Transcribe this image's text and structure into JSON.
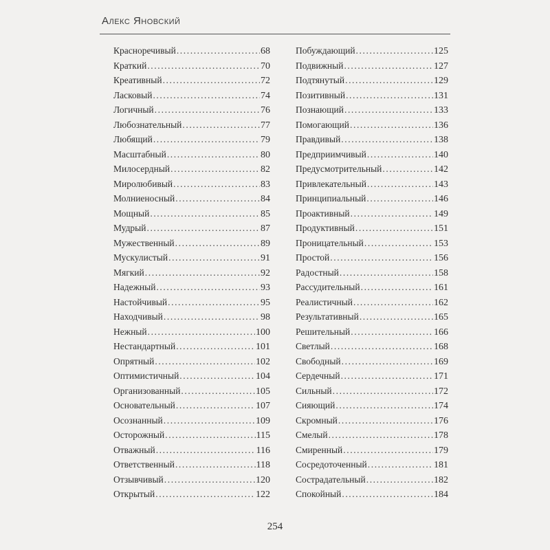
{
  "header": {
    "author": "Алекс Яновский"
  },
  "index_left": [
    {
      "term": "Красноречивый",
      "page": "68"
    },
    {
      "term": "Краткий",
      "page": "70"
    },
    {
      "term": "Креативный",
      "page": "72"
    },
    {
      "term": "Ласковый",
      "page": "74"
    },
    {
      "term": "Логичный",
      "page": "76"
    },
    {
      "term": "Любознательный",
      "page": "77"
    },
    {
      "term": "Любящий",
      "page": "79"
    },
    {
      "term": "Масштабный",
      "page": "80"
    },
    {
      "term": "Милосердный",
      "page": "82"
    },
    {
      "term": "Миролюбивый",
      "page": "83"
    },
    {
      "term": "Молниеносный",
      "page": "84"
    },
    {
      "term": "Мощный",
      "page": "85"
    },
    {
      "term": "Мудрый",
      "page": "87"
    },
    {
      "term": "Мужественный",
      "page": "89"
    },
    {
      "term": "Мускулистый",
      "page": "91"
    },
    {
      "term": "Мягкий",
      "page": "92"
    },
    {
      "term": "Надежный",
      "page": "93"
    },
    {
      "term": "Настойчивый",
      "page": "95"
    },
    {
      "term": "Находчивый",
      "page": "98"
    },
    {
      "term": "Нежный",
      "page": "100"
    },
    {
      "term": "Нестандартный",
      "page": "101"
    },
    {
      "term": "Опрятный",
      "page": "102"
    },
    {
      "term": "Оптимистичный",
      "page": "104"
    },
    {
      "term": "Организованный",
      "page": "105"
    },
    {
      "term": "Основательный",
      "page": "107"
    },
    {
      "term": "Осознанный",
      "page": "109"
    },
    {
      "term": "Осторожный",
      "page": "115"
    },
    {
      "term": "Отважный",
      "page": "116"
    },
    {
      "term": "Ответственный",
      "page": "118"
    },
    {
      "term": "Отзывчивый",
      "page": "120"
    },
    {
      "term": "Открытый",
      "page": "122"
    }
  ],
  "index_right": [
    {
      "term": "Побуждающий",
      "page": "125"
    },
    {
      "term": "Подвижный",
      "page": "127"
    },
    {
      "term": "Подтянутый",
      "page": "129"
    },
    {
      "term": "Позитивный",
      "page": "131"
    },
    {
      "term": "Познающий",
      "page": "133"
    },
    {
      "term": "Помогающий",
      "page": "136"
    },
    {
      "term": "Правдивый",
      "page": "138"
    },
    {
      "term": "Предприимчивый",
      "page": "140"
    },
    {
      "term": "Предусмотрительный",
      "page": "142"
    },
    {
      "term": "Привлекательный",
      "page": "143"
    },
    {
      "term": "Принципиальный",
      "page": "146"
    },
    {
      "term": "Проактивный",
      "page": "149"
    },
    {
      "term": "Продуктивный",
      "page": "151"
    },
    {
      "term": "Проницательный",
      "page": "153"
    },
    {
      "term": "Простой",
      "page": "156"
    },
    {
      "term": "Радостный",
      "page": "158"
    },
    {
      "term": "Рассудительный",
      "page": "161"
    },
    {
      "term": "Реалистичный",
      "page": "162"
    },
    {
      "term": "Результативный",
      "page": "165"
    },
    {
      "term": "Решительный",
      "page": "166"
    },
    {
      "term": "Светлый",
      "page": "168"
    },
    {
      "term": "Свободный",
      "page": "169"
    },
    {
      "term": "Сердечный",
      "page": "171"
    },
    {
      "term": "Сильный",
      "page": "172"
    },
    {
      "term": "Сияющий",
      "page": "174"
    },
    {
      "term": "Скромный",
      "page": "176"
    },
    {
      "term": "Смелый",
      "page": "178"
    },
    {
      "term": "Смиренный",
      "page": "179"
    },
    {
      "term": "Сосредоточенный",
      "page": "181"
    },
    {
      "term": "Сострадательный",
      "page": "182"
    },
    {
      "term": "Спокойный",
      "page": "184"
    }
  ],
  "footer": {
    "page_number": "254"
  }
}
